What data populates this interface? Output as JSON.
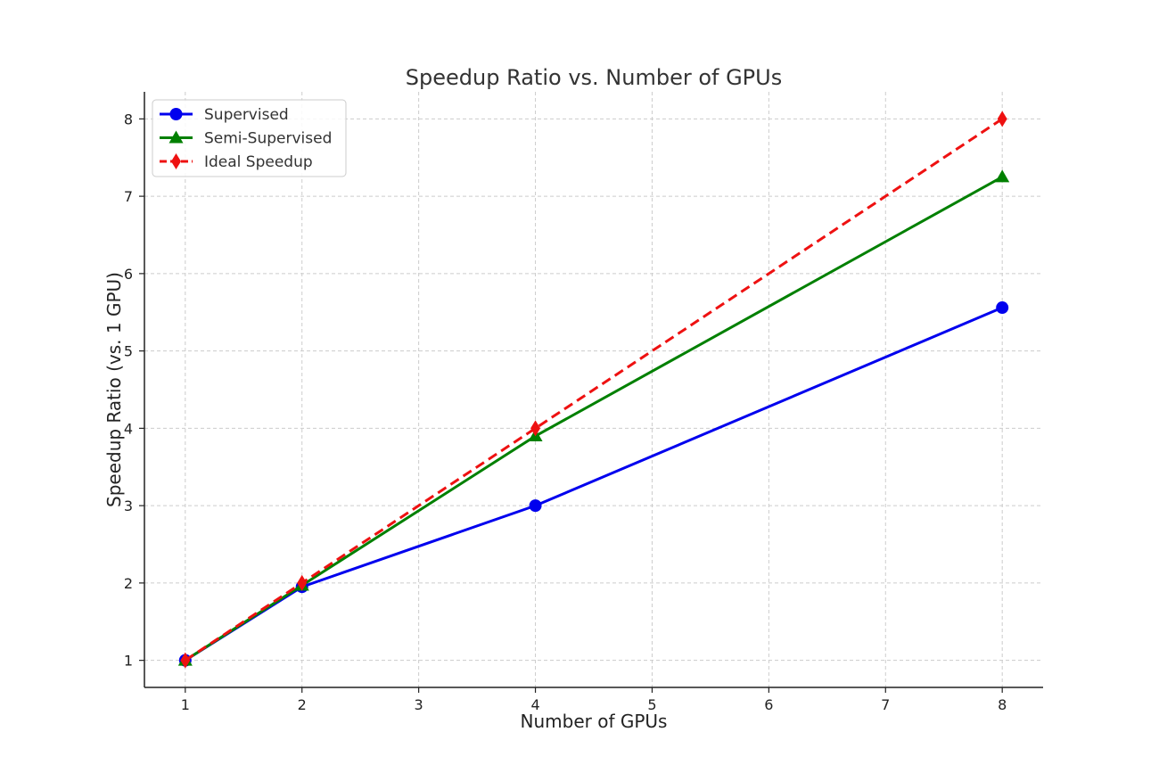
{
  "chart_data": {
    "type": "line",
    "title": "Speedup Ratio vs. Number of GPUs",
    "xlabel": "Number of GPUs",
    "ylabel": "Speedup Ratio (vs. 1 GPU)",
    "xlim": [
      0.65,
      8.35
    ],
    "ylim": [
      0.65,
      8.35
    ],
    "x_ticks": [
      1,
      2,
      3,
      4,
      5,
      6,
      7,
      8
    ],
    "y_ticks": [
      1,
      2,
      3,
      4,
      5,
      6,
      7,
      8
    ],
    "grid": true,
    "legend_position": "top-left",
    "series": [
      {
        "name": "Supervised",
        "x": [
          1,
          2,
          4,
          8
        ],
        "values": [
          1.0,
          1.95,
          3.0,
          5.56
        ],
        "color": "#0000ee",
        "marker": "circle",
        "linestyle": "solid"
      },
      {
        "name": "Semi-Supervised",
        "x": [
          1,
          2,
          4,
          8
        ],
        "values": [
          1.0,
          1.97,
          3.9,
          7.25
        ],
        "color": "#008000",
        "marker": "triangle",
        "linestyle": "solid"
      },
      {
        "name": "Ideal Speedup",
        "x": [
          1,
          2,
          4,
          8
        ],
        "values": [
          1.0,
          2.0,
          4.0,
          8.0
        ],
        "color": "#ee1111",
        "marker": "diamond",
        "linestyle": "dashed"
      }
    ]
  }
}
